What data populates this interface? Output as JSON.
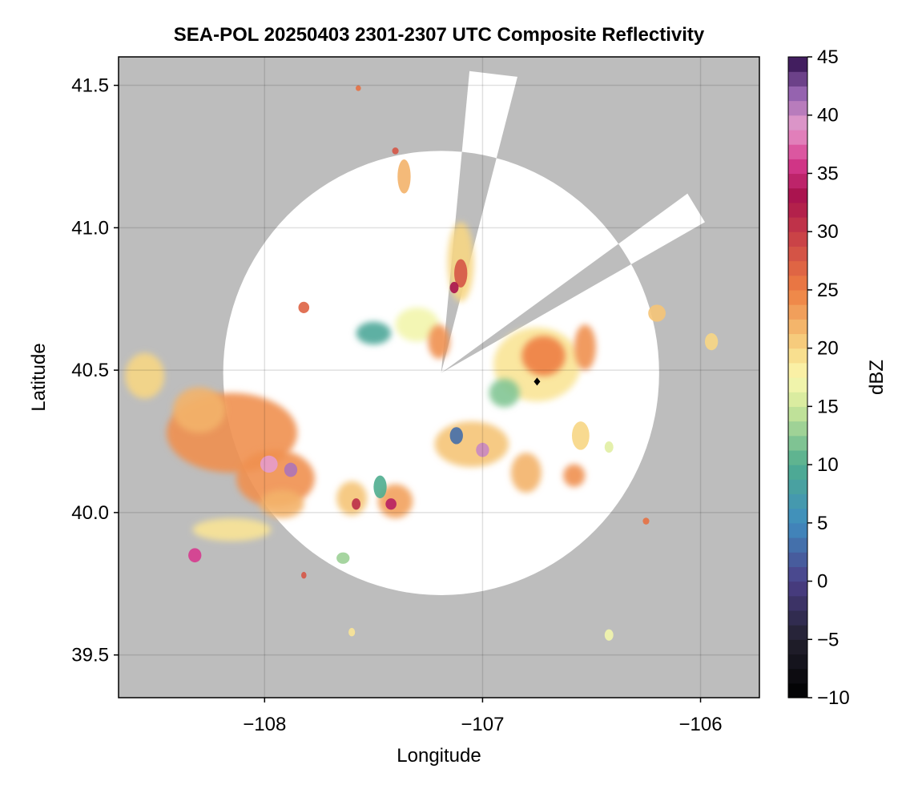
{
  "chart_data": {
    "type": "heatmap",
    "title": "SEA-POL 20250403 2301-2307 UTC Composite Reflectivity",
    "xlabel": "Longitude",
    "ylabel": "Latitude",
    "xlim": [
      -108.67,
      -105.73
    ],
    "ylim": [
      39.35,
      41.6
    ],
    "x_ticks": [
      -108,
      -107,
      -106
    ],
    "x_tick_labels": [
      "−108",
      "−107",
      "−106"
    ],
    "y_ticks": [
      39.5,
      40.0,
      40.5,
      41.0,
      41.5
    ],
    "y_tick_labels": [
      "39.5",
      "40.0",
      "40.5",
      "41.0",
      "41.5"
    ],
    "grid": true,
    "no_data_color": "#bdbdbd",
    "radar_site": {
      "lon": -107.19,
      "lat": 40.49
    },
    "radar_range_deg": {
      "lon": 1.0,
      "lat": 0.78
    },
    "blocked_sectors": [
      {
        "lon1": -106.84,
        "lat1": 41.53,
        "lon2": -107.06,
        "lat2": 41.55
      },
      {
        "lon1": -106.06,
        "lat1": 41.12,
        "lon2": -105.98,
        "lat2": 41.02
      }
    ],
    "marker": {
      "lon": -106.75,
      "lat": 40.46
    },
    "colorbar": {
      "label": "dBZ",
      "min": -10,
      "max": 45,
      "ticks": [
        -10,
        -5,
        0,
        5,
        10,
        15,
        20,
        25,
        30,
        35,
        40,
        45
      ],
      "tick_labels": [
        "−10",
        "−5",
        "0",
        "5",
        "10",
        "15",
        "20",
        "25",
        "30",
        "35",
        "40",
        "45"
      ],
      "colormap": [
        {
          "v": -10,
          "c": "#000000"
        },
        {
          "v": -5,
          "c": "#22202e"
        },
        {
          "v": 0,
          "c": "#4b3f88"
        },
        {
          "v": 5,
          "c": "#3f8dc0"
        },
        {
          "v": 10,
          "c": "#4fad8f"
        },
        {
          "v": 15,
          "c": "#cfe89a"
        },
        {
          "v": 17.5,
          "c": "#fbf8b0"
        },
        {
          "v": 20,
          "c": "#f7d684"
        },
        {
          "v": 25,
          "c": "#ee7e42"
        },
        {
          "v": 30,
          "c": "#c53a48"
        },
        {
          "v": 33,
          "c": "#a8124c"
        },
        {
          "v": 36,
          "c": "#d63a8e"
        },
        {
          "v": 39,
          "c": "#e69ccc"
        },
        {
          "v": 42,
          "c": "#9160ae"
        },
        {
          "v": 45,
          "c": "#2d0c4a"
        }
      ]
    },
    "storm_cells": [
      {
        "lon": -108.55,
        "lat": 40.48,
        "rlon": 0.09,
        "rlat": 0.08,
        "dbz": 20
      },
      {
        "lon": -108.15,
        "lat": 40.28,
        "rlon": 0.3,
        "rlat": 0.14,
        "dbz": 24
      },
      {
        "lon": -108.3,
        "lat": 40.36,
        "rlon": 0.12,
        "rlat": 0.08,
        "dbz": 22
      },
      {
        "lon": -107.95,
        "lat": 40.12,
        "rlon": 0.18,
        "rlat": 0.1,
        "dbz": 24
      },
      {
        "lon": -107.98,
        "lat": 40.17,
        "rlon": 0.04,
        "rlat": 0.03,
        "dbz": 39
      },
      {
        "lon": -107.88,
        "lat": 40.15,
        "rlon": 0.03,
        "rlat": 0.025,
        "dbz": 41
      },
      {
        "lon": -107.92,
        "lat": 40.03,
        "rlon": 0.1,
        "rlat": 0.05,
        "dbz": 22
      },
      {
        "lon": -108.15,
        "lat": 39.94,
        "rlon": 0.18,
        "rlat": 0.04,
        "dbz": 19
      },
      {
        "lon": -108.32,
        "lat": 39.85,
        "rlon": 0.03,
        "rlat": 0.025,
        "dbz": 36
      },
      {
        "lon": -107.6,
        "lat": 40.05,
        "rlon": 0.07,
        "rlat": 0.06,
        "dbz": 21
      },
      {
        "lon": -107.4,
        "lat": 40.04,
        "rlon": 0.08,
        "rlat": 0.06,
        "dbz": 23
      },
      {
        "lon": -107.42,
        "lat": 40.03,
        "rlon": 0.025,
        "rlat": 0.02,
        "dbz": 34
      },
      {
        "lon": -107.58,
        "lat": 40.03,
        "rlon": 0.02,
        "rlat": 0.02,
        "dbz": 31
      },
      {
        "lon": -107.47,
        "lat": 40.09,
        "rlon": 0.03,
        "rlat": 0.04,
        "dbz": 10
      },
      {
        "lon": -107.5,
        "lat": 40.63,
        "rlon": 0.08,
        "rlat": 0.04,
        "dbz": 9
      },
      {
        "lon": -107.3,
        "lat": 40.66,
        "rlon": 0.1,
        "rlat": 0.06,
        "dbz": 17
      },
      {
        "lon": -107.2,
        "lat": 40.6,
        "rlon": 0.05,
        "rlat": 0.06,
        "dbz": 24
      },
      {
        "lon": -107.1,
        "lat": 40.88,
        "rlon": 0.06,
        "rlat": 0.14,
        "dbz": 20
      },
      {
        "lon": -107.1,
        "lat": 40.84,
        "rlon": 0.03,
        "rlat": 0.05,
        "dbz": 28
      },
      {
        "lon": -107.13,
        "lat": 40.79,
        "rlon": 0.02,
        "rlat": 0.02,
        "dbz": 33
      },
      {
        "lon": -106.75,
        "lat": 40.52,
        "rlon": 0.2,
        "rlat": 0.13,
        "dbz": 19
      },
      {
        "lon": -106.72,
        "lat": 40.55,
        "rlon": 0.1,
        "rlat": 0.07,
        "dbz": 25
      },
      {
        "lon": -106.53,
        "lat": 40.58,
        "rlon": 0.05,
        "rlat": 0.08,
        "dbz": 24
      },
      {
        "lon": -106.9,
        "lat": 40.42,
        "rlon": 0.07,
        "rlat": 0.05,
        "dbz": 12
      },
      {
        "lon": -107.05,
        "lat": 40.24,
        "rlon": 0.17,
        "rlat": 0.08,
        "dbz": 21
      },
      {
        "lon": -107.0,
        "lat": 40.22,
        "rlon": 0.03,
        "rlat": 0.025,
        "dbz": 40
      },
      {
        "lon": -107.12,
        "lat": 40.27,
        "rlon": 0.03,
        "rlat": 0.03,
        "dbz": 3
      },
      {
        "lon": -106.8,
        "lat": 40.14,
        "rlon": 0.07,
        "rlat": 0.07,
        "dbz": 22
      },
      {
        "lon": -106.58,
        "lat": 40.13,
        "rlon": 0.05,
        "rlat": 0.04,
        "dbz": 24
      },
      {
        "lon": -106.55,
        "lat": 40.27,
        "rlon": 0.04,
        "rlat": 0.05,
        "dbz": 20
      },
      {
        "lon": -107.36,
        "lat": 41.18,
        "rlon": 0.03,
        "rlat": 0.06,
        "dbz": 22
      },
      {
        "lon": -107.4,
        "lat": 41.27,
        "rlon": 0.015,
        "rlat": 0.012,
        "dbz": 28
      },
      {
        "lon": -107.57,
        "lat": 41.49,
        "rlon": 0.012,
        "rlat": 0.01,
        "dbz": 26
      },
      {
        "lon": -107.82,
        "lat": 40.72,
        "rlon": 0.025,
        "rlat": 0.02,
        "dbz": 27
      },
      {
        "lon": -106.2,
        "lat": 40.7,
        "rlon": 0.04,
        "rlat": 0.03,
        "dbz": 21
      },
      {
        "lon": -105.95,
        "lat": 40.6,
        "rlon": 0.03,
        "rlat": 0.03,
        "dbz": 20
      },
      {
        "lon": -107.64,
        "lat": 39.84,
        "rlon": 0.03,
        "rlat": 0.02,
        "dbz": 13
      },
      {
        "lon": -106.42,
        "lat": 39.57,
        "rlon": 0.02,
        "rlat": 0.02,
        "dbz": 17
      },
      {
        "lon": -107.6,
        "lat": 39.58,
        "rlon": 0.015,
        "rlat": 0.015,
        "dbz": 19
      },
      {
        "lon": -107.82,
        "lat": 39.78,
        "rlon": 0.012,
        "rlat": 0.012,
        "dbz": 28
      },
      {
        "lon": -106.25,
        "lat": 39.97,
        "rlon": 0.015,
        "rlat": 0.012,
        "dbz": 26
      },
      {
        "lon": -106.42,
        "lat": 40.23,
        "rlon": 0.02,
        "rlat": 0.02,
        "dbz": 16
      }
    ]
  }
}
